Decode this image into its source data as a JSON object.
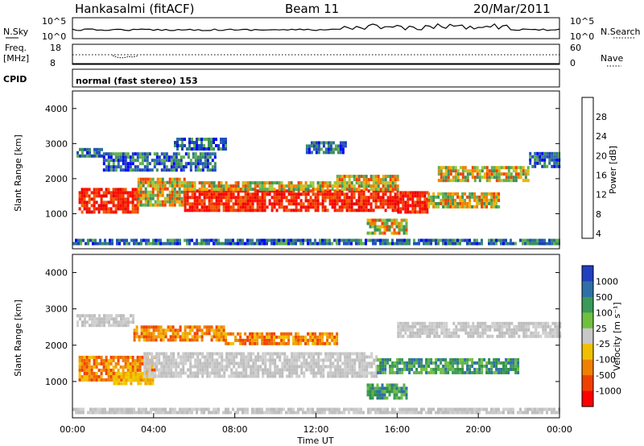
{
  "header": {
    "station": "Hankasalmi (fitACF)",
    "beam": "Beam 11",
    "date": "20/Mar/2011"
  },
  "aux_panels": {
    "nsky_label": "N.Sky",
    "nsearch_label": "N.Search",
    "nsky_ticks": [
      "10^5",
      "10^0"
    ],
    "nsearch_ticks": [
      "10^5",
      "10^0"
    ],
    "freq_label": "Freq.",
    "freq_unit": "[MHz]",
    "freq_ticks": [
      "18",
      "8"
    ],
    "nave_label": "Nave",
    "nave_ticks": [
      "60",
      "0"
    ],
    "cpid_label": "CPID",
    "cpid_text": "normal (fast stereo) 153"
  },
  "chart_data": [
    {
      "type": "heatmap",
      "name": "power",
      "ylabel": "Slant Range [km]",
      "xlabel": "",
      "ylim": [
        0,
        4500
      ],
      "yticks": [
        "4000",
        "3000",
        "2000",
        "1000"
      ],
      "xlim_hours": [
        0,
        24
      ],
      "colorbar": {
        "label": "Power [dB]",
        "ticks": [
          "28",
          "24",
          "20",
          "16",
          "12",
          "8",
          "4"
        ],
        "colors": [
          "#0000ff",
          "#1e3fb0",
          "#2d6fa0",
          "#3a8f5a",
          "#5fae4f",
          "#9ccc3c",
          "#e8e000",
          "#f0b000",
          "#f07f00",
          "#f04000",
          "#ff0000"
        ]
      },
      "bands": [
        {
          "t0": 0.3,
          "t1": 3.2,
          "r0": 1000,
          "r1": 1700,
          "level": "high"
        },
        {
          "t0": 3.2,
          "t1": 5.5,
          "r0": 1200,
          "r1": 2000,
          "level": "mid"
        },
        {
          "t0": 5.5,
          "t1": 16.0,
          "r0": 1050,
          "r1": 1650,
          "level": "high"
        },
        {
          "t0": 5.5,
          "t1": 13.0,
          "r0": 1650,
          "r1": 1900,
          "level": "mid"
        },
        {
          "t0": 13.0,
          "t1": 16.0,
          "r0": 1650,
          "r1": 2050,
          "level": "mid"
        },
        {
          "t0": 16.0,
          "t1": 17.5,
          "r0": 1000,
          "r1": 1600,
          "level": "high"
        },
        {
          "t0": 17.5,
          "t1": 21.0,
          "r0": 1150,
          "r1": 1600,
          "level": "mid"
        },
        {
          "t0": 18.0,
          "t1": 22.5,
          "r0": 1900,
          "r1": 2300,
          "level": "mid"
        },
        {
          "t0": 22.5,
          "t1": 24.0,
          "r0": 2300,
          "r1": 2700,
          "level": "low"
        },
        {
          "t0": 0.2,
          "t1": 1.5,
          "r0": 2600,
          "r1": 2850,
          "level": "low"
        },
        {
          "t0": 1.5,
          "t1": 7.0,
          "r0": 2200,
          "r1": 2700,
          "level": "low"
        },
        {
          "t0": 5.0,
          "t1": 7.5,
          "r0": 2800,
          "r1": 3100,
          "level": "low"
        },
        {
          "t0": 11.5,
          "t1": 13.5,
          "r0": 2700,
          "r1": 3000,
          "level": "low"
        },
        {
          "t0": 14.5,
          "t1": 16.5,
          "r0": 400,
          "r1": 800,
          "level": "mid"
        },
        {
          "t0": 0.0,
          "t1": 24.0,
          "r0": 100,
          "r1": 250,
          "level": "low"
        }
      ]
    },
    {
      "type": "heatmap",
      "name": "velocity",
      "ylabel": "Slant Range [km]",
      "xlabel": "Time UT",
      "ylim": [
        0,
        4500
      ],
      "yticks": [
        "4000",
        "3000",
        "2000",
        "1000"
      ],
      "xlim_hours": [
        0,
        24
      ],
      "xticks": [
        "00:00",
        "04:00",
        "08:00",
        "12:00",
        "16:00",
        "20:00",
        "00:00"
      ],
      "colorbar": {
        "label": "Velocity [m s⁻¹]",
        "ticks": [
          "1000",
          "500",
          "100",
          "25",
          "-25",
          "-100",
          "-500",
          "-1000"
        ],
        "colors": [
          "#2040c0",
          "#2f6fa8",
          "#3a9a5a",
          "#70c040",
          "#c8c8c8",
          "#f0c000",
          "#f08000",
          "#f04000",
          "#ff0000"
        ]
      },
      "bands": [
        {
          "t0": 0.3,
          "t1": 4.0,
          "r0": 1000,
          "r1": 1700,
          "level": "orange"
        },
        {
          "t0": 2.0,
          "t1": 4.0,
          "r0": 900,
          "r1": 1200,
          "level": "yellow"
        },
        {
          "t0": 3.5,
          "t1": 15.0,
          "r0": 1100,
          "r1": 1800,
          "level": "gray"
        },
        {
          "t0": 15.0,
          "t1": 22.0,
          "r0": 1200,
          "r1": 1600,
          "level": "green"
        },
        {
          "t0": 0.2,
          "t1": 3.0,
          "r0": 2500,
          "r1": 2800,
          "level": "gray"
        },
        {
          "t0": 3.0,
          "t1": 7.5,
          "r0": 2100,
          "r1": 2500,
          "level": "orange"
        },
        {
          "t0": 7.5,
          "t1": 13.0,
          "r0": 2000,
          "r1": 2300,
          "level": "orange"
        },
        {
          "t0": 16.0,
          "t1": 24.0,
          "r0": 2200,
          "r1": 2600,
          "level": "gray"
        },
        {
          "t0": 14.5,
          "t1": 16.5,
          "r0": 500,
          "r1": 900,
          "level": "green"
        },
        {
          "t0": 0.0,
          "t1": 24.0,
          "r0": 100,
          "r1": 250,
          "level": "gray"
        }
      ]
    }
  ]
}
